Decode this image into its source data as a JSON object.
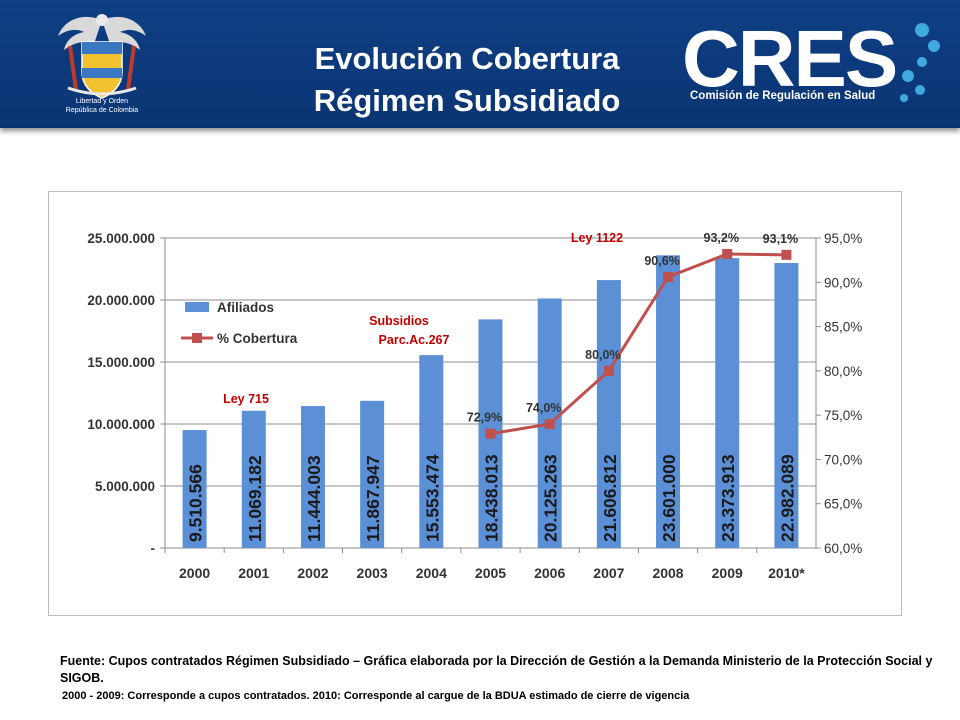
{
  "header": {
    "title_line1": "Evolución Cobertura",
    "title_line2": "Régimen Subsidiado",
    "crest_caption_line1": "Libertad y Orden",
    "crest_caption_line2": "República de Colombia",
    "logo_text": "CRES",
    "logo_subtitle": "Comisión de Regulación en Salud",
    "colors": {
      "header_bg": "#0a3574",
      "logo_accent": "#3fa9e0"
    }
  },
  "chart_data": {
    "type": "bar",
    "categories": [
      "2000",
      "2001",
      "2002",
      "2003",
      "2004",
      "2005",
      "2006",
      "2007",
      "2008",
      "2009",
      "2010*"
    ],
    "series": [
      {
        "name": "Afiliados",
        "type": "bar",
        "axis": "left",
        "color": "#5b8fd6",
        "values": [
          9510566,
          11069182,
          11444003,
          11867947,
          15553474,
          18438013,
          20125263,
          21606812,
          23601000,
          23373913,
          22982089
        ],
        "labels": [
          "9.510.566",
          "11.069.182",
          "11.444.003",
          "11.867.947",
          "15.553.474",
          "18.438.013",
          "20.125.263",
          "21.606.812",
          "23.601.000",
          "23.373.913",
          "22.982.089"
        ]
      },
      {
        "name": "% Cobertura",
        "type": "line",
        "axis": "right",
        "color": "#c0504d",
        "values": [
          null,
          null,
          null,
          null,
          null,
          72.9,
          74.0,
          80.0,
          90.6,
          93.2,
          93.1
        ],
        "labels": [
          "",
          "",
          "",
          "",
          "",
          "72,9%",
          "74,0%",
          "80,0%",
          "90,6%",
          "93,2%",
          "93,1%"
        ]
      }
    ],
    "y_left": {
      "range": [
        0,
        25000000
      ],
      "ticks": [
        0,
        5000000,
        10000000,
        15000000,
        20000000,
        25000000
      ],
      "tick_labels": [
        "-",
        "5.000.000",
        "10.000.000",
        "15.000.000",
        "20.000.000",
        "25.000.000"
      ]
    },
    "y_right": {
      "range": [
        60,
        95
      ],
      "ticks": [
        60,
        65,
        70,
        75,
        80,
        85,
        90,
        95
      ],
      "tick_labels": [
        "60,0%",
        "65,0%",
        "70,0%",
        "75,0%",
        "80,0%",
        "85,0%",
        "90,0%",
        "95,0%"
      ]
    },
    "annotations": [
      {
        "text": "Ley 715",
        "category": "2001"
      },
      {
        "text": "Subsidios",
        "text2": "Parc.Ac.267",
        "category": "2004"
      },
      {
        "text": "Ley 1122",
        "category": "2007"
      }
    ],
    "annotation_color": "#c00000",
    "grid": true,
    "legend_position": "top-left"
  },
  "footer": {
    "source": "Fuente: Cupos contratados Régimen Subsidiado – Gráfica elaborada por la Dirección de Gestión a la Demanda Ministerio de la Protección Social y SIGOB.",
    "note": "2000 - 2009: Corresponde a cupos contratados. 2010: Corresponde al cargue de la BDUA estimado de cierre de vigencia"
  }
}
